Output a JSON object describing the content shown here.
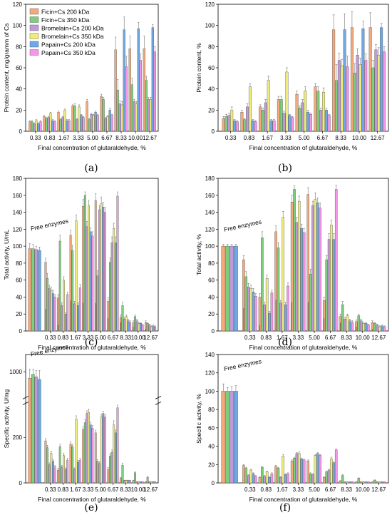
{
  "colors": {
    "ficin200": "#f4a97a",
    "ficin350": "#7ccf7c",
    "brom200": "#c09ad8",
    "brom350": "#f0ec7c",
    "pap200": "#6ea9e6",
    "pap350": "#f596ea"
  },
  "legend": [
    "Ficin+Cs 200 kDa",
    "Ficin+Cs 350 kDa",
    "Bromelain+Cs 200 kDa",
    "Bromelain+Cs 350 kDa",
    "Papain+Cs 200 kDa",
    "Papain+Cs 350 kDa"
  ],
  "chart_data": [
    {
      "panel": "(a)",
      "type": "bar",
      "xlabel": "Final concentration of glutaraldehyde, %",
      "ylabel": "Protein content, mg/gramm of Cs",
      "ylim": [
        0,
        120
      ],
      "yticks": [
        0,
        20,
        40,
        60,
        80,
        100,
        120
      ],
      "categories": [
        "0.33",
        "0.83",
        "1.67",
        "3.33",
        "5.00",
        "6.67",
        "8.33",
        "10.00",
        "12.67"
      ],
      "free_enzymes": false,
      "legend_position": "top-left",
      "series": [
        {
          "name": "Ficin+Cs 200 kDa",
          "values": [
            9,
            14,
            18,
            24,
            28,
            33,
            77,
            78,
            78
          ],
          "err": [
            1,
            1,
            1,
            1,
            2,
            2,
            12,
            12,
            12
          ]
        },
        {
          "name": "Ficin+Cs 350 kDa",
          "values": [
            9,
            12,
            11,
            24,
            11,
            30,
            39,
            44,
            48
          ],
          "err": [
            1,
            1,
            1,
            2,
            1,
            2,
            10,
            6,
            4
          ]
        },
        {
          "name": "Bromelain+Cs 200 kDa",
          "values": [
            7,
            13,
            13,
            11,
            16,
            12,
            26,
            28,
            30
          ],
          "err": [
            1,
            1,
            1,
            1,
            1,
            1,
            3,
            2,
            2
          ]
        },
        {
          "name": "Bromelain+Cs 350 kDa",
          "values": [
            10,
            17,
            20,
            23,
            15,
            14,
            25,
            26,
            30
          ],
          "err": [
            1,
            1,
            1,
            2,
            1,
            1,
            3,
            2,
            2
          ]
        },
        {
          "name": "Papain+Cs 200 kDa",
          "values": [
            7,
            10,
            10,
            15,
            18,
            20,
            96,
            97,
            98
          ],
          "err": [
            1,
            1,
            1,
            1,
            1,
            2,
            12,
            6,
            3
          ]
        },
        {
          "name": "Papain+Cs 350 kDa",
          "values": [
            9,
            9,
            10,
            13,
            15,
            15,
            61,
            67,
            75
          ],
          "err": [
            1,
            1,
            1,
            1,
            1,
            1,
            10,
            6,
            5
          ]
        }
      ]
    },
    {
      "panel": "(b)",
      "type": "bar",
      "xlabel": "Final concentration of glutaraldehyde, %",
      "ylabel": "Protein content, %",
      "ylim": [
        0,
        120
      ],
      "yticks": [
        0,
        20,
        40,
        60,
        80,
        100,
        120
      ],
      "categories": [
        "0.33",
        "0.83",
        "1.67",
        "3.33",
        "5.00",
        "6.67",
        "8.33",
        "10.00",
        "12.67"
      ],
      "free_enzymes": false,
      "series": [
        {
          "name": "Ficin+Cs 200 kDa",
          "values": [
            12,
            18,
            23,
            30,
            35,
            42,
            96,
            98,
            98
          ],
          "err": [
            2,
            2,
            2,
            3,
            3,
            3,
            14,
            15,
            14
          ]
        },
        {
          "name": "Ficin+Cs 350 kDa",
          "values": [
            14,
            11,
            20,
            30,
            22,
            38,
            48,
            55,
            60
          ],
          "err": [
            2,
            1,
            2,
            3,
            2,
            4,
            15,
            9,
            7
          ]
        },
        {
          "name": "Bromelain+Cs 200 kDa",
          "values": [
            15,
            23,
            27,
            17,
            27,
            20,
            67,
            72,
            77
          ],
          "err": [
            2,
            3,
            3,
            2,
            3,
            2,
            7,
            6,
            5
          ]
        },
        {
          "name": "Bromelain+Cs 350 kDa",
          "values": [
            20,
            42,
            48,
            56,
            38,
            37,
            62,
            63,
            72
          ],
          "err": [
            3,
            3,
            4,
            4,
            4,
            4,
            6,
            6,
            7
          ]
        },
        {
          "name": "Papain+Cs 200 kDa",
          "values": [
            10,
            10,
            10,
            15,
            18,
            20,
            96,
            97,
            98
          ],
          "err": [
            1,
            1,
            1,
            1,
            2,
            2,
            15,
            7,
            4
          ]
        },
        {
          "name": "Papain+Cs 350 kDa",
          "values": [
            9,
            9,
            10,
            13,
            16,
            15,
            61,
            67,
            75
          ],
          "err": [
            1,
            1,
            1,
            1,
            1,
            1,
            10,
            6,
            5
          ]
        }
      ]
    },
    {
      "panel": "(c)",
      "type": "bar",
      "xlabel": "Final concentration of glutaraldehyde, %",
      "ylabel": "Total activity, U/mL",
      "ylim": [
        0,
        180
      ],
      "yticks": [
        0,
        20,
        40,
        60,
        80,
        100,
        120,
        140,
        160,
        180
      ],
      "categories": [
        "0.33",
        "0.83",
        "1.67",
        "3.33",
        "5.00",
        "6.67",
        "8.33",
        "10.00",
        "12.67"
      ],
      "free_enzymes": true,
      "annotation": "Free enzymes",
      "free_values": [
        97,
        97,
        96,
        95
      ],
      "free_err": [
        6,
        5,
        4,
        4
      ],
      "series": [
        {
          "name": "Ficin+Cs 200 kDa",
          "values": [
            81,
            39,
            113,
            147,
            154,
            35,
            16,
            10,
            10
          ],
          "err": [
            5,
            4,
            6,
            8,
            8,
            4,
            3,
            2,
            2
          ]
        },
        {
          "name": "Ficin+Cs 350 kDa",
          "values": [
            62,
            106,
            95,
            160,
            65,
            81,
            30,
            17,
            9
          ],
          "err": [
            6,
            7,
            6,
            4,
            6,
            5,
            4,
            2,
            1
          ]
        },
        {
          "name": "Bromelain+Cs 200 kDa",
          "values": [
            50,
            30,
            32,
            123,
            143,
            104,
            14,
            12,
            7
          ],
          "err": [
            4,
            3,
            3,
            6,
            5,
            7,
            2,
            2,
            1
          ]
        },
        {
          "name": "Bromelain+Cs 350 kDa",
          "values": [
            48,
            60,
            130,
            148,
            150,
            121,
            17,
            9,
            5
          ],
          "err": [
            4,
            4,
            7,
            6,
            8,
            6,
            2,
            1,
            1
          ]
        },
        {
          "name": "Papain+Cs 200 kDa",
          "values": [
            44,
            20,
            30,
            117,
            146,
            104,
            12,
            9,
            6
          ],
          "err": [
            4,
            2,
            3,
            5,
            6,
            7,
            2,
            1,
            1
          ]
        },
        {
          "name": "Papain+Cs 350 kDa",
          "values": [
            40,
            43,
            51,
            112,
            140,
            159,
            10,
            7,
            5
          ],
          "err": [
            3,
            3,
            4,
            5,
            6,
            5,
            2,
            1,
            1
          ]
        }
      ],
      "inner_values": [
        26,
        7,
        36,
        33,
        33,
        15,
        10,
        5,
        2
      ]
    },
    {
      "panel": "(d)",
      "type": "bar",
      "xlabel": "Final concentration of glutaraldehyde, %",
      "ylabel": "Total activity, %",
      "ylim": [
        0,
        180
      ],
      "yticks": [
        0,
        20,
        40,
        60,
        80,
        100,
        120,
        140,
        160,
        180
      ],
      "categories": [
        "0.33",
        "0.83",
        "1.67",
        "3.33",
        "5.00",
        "6.67",
        "8.33",
        "10.00",
        "12.67"
      ],
      "free_enzymes": true,
      "annotation": "Free enzymes",
      "free_values": [
        100,
        100,
        100,
        100
      ],
      "free_err": [
        2,
        2,
        2,
        2
      ],
      "series": [
        {
          "name": "Ficin+Cs 200 kDa",
          "values": [
            84,
            40,
            117,
            152,
            161,
            36,
            17,
            11,
            10
          ],
          "err": [
            5,
            4,
            7,
            8,
            8,
            4,
            3,
            2,
            2
          ]
        },
        {
          "name": "Ficin+Cs 350 kDa",
          "values": [
            64,
            110,
            98,
            167,
            67,
            84,
            31,
            18,
            9
          ],
          "err": [
            6,
            7,
            6,
            4,
            6,
            5,
            4,
            2,
            1
          ]
        },
        {
          "name": "Bromelain+Cs 200 kDa",
          "values": [
            52,
            31,
            33,
            128,
            148,
            108,
            14,
            12,
            7
          ],
          "err": [
            4,
            3,
            3,
            6,
            5,
            7,
            2,
            2,
            1
          ]
        },
        {
          "name": "Bromelain+Cs 350 kDa",
          "values": [
            50,
            62,
            134,
            153,
            155,
            125,
            18,
            9,
            5
          ],
          "err": [
            4,
            4,
            7,
            6,
            8,
            6,
            2,
            1,
            1
          ]
        },
        {
          "name": "Papain+Cs 200 kDa",
          "values": [
            46,
            21,
            31,
            121,
            151,
            108,
            12,
            9,
            6
          ],
          "err": [
            4,
            2,
            3,
            5,
            6,
            7,
            2,
            1,
            1
          ]
        },
        {
          "name": "Papain+Cs 350 kDa",
          "values": [
            41,
            45,
            53,
            116,
            145,
            167,
            10,
            7,
            5
          ],
          "err": [
            3,
            3,
            4,
            5,
            6,
            5,
            2,
            1,
            1
          ]
        }
      ],
      "inner_values": [
        27,
        7,
        37,
        34,
        34,
        15,
        10,
        5,
        2
      ]
    },
    {
      "panel": "(e)",
      "type": "bar",
      "xlabel": "Final concentration of glutaraldehyde, %",
      "ylabel": "Specific activity, U/mg",
      "axis_break": true,
      "yticks": [
        0,
        200,
        1000
      ],
      "categories": [
        "0.33",
        "0.83",
        "1.67",
        "3.33",
        "5.00",
        "6.67",
        "8.33",
        "10.00",
        "12.67"
      ],
      "free_enzymes": true,
      "annotation": "Free enzymes",
      "free_values": [
        950,
        980,
        960,
        940
      ],
      "free_err": [
        70,
        40,
        50,
        70
      ],
      "series": [
        {
          "name": "Ficin+Cs 200 kDa",
          "values": [
            185,
            56,
            170,
            235,
            220,
            60,
            20,
            10,
            5
          ],
          "err": [
            10,
            8,
            12,
            12,
            12,
            8,
            4,
            2,
            1
          ]
        },
        {
          "name": "Ficin+Cs 350 kDa",
          "values": [
            155,
            160,
            160,
            265,
            95,
            118,
            78,
            45,
            25
          ],
          "err": [
            10,
            10,
            10,
            12,
            8,
            10,
            8,
            4,
            3
          ]
        },
        {
          "name": "Bromelain+Cs 200 kDa",
          "values": [
            80,
            70,
            60,
            305,
            85,
            135,
            10,
            5,
            5
          ],
          "err": [
            8,
            6,
            6,
            12,
            8,
            10,
            2,
            1,
            1
          ]
        },
        {
          "name": "Bromelain+Cs 350 kDa",
          "values": [
            130,
            120,
            280,
            310,
            290,
            255,
            10,
            5,
            5
          ],
          "err": [
            10,
            10,
            15,
            15,
            12,
            18,
            2,
            1,
            1
          ]
        },
        {
          "name": "Papain+Cs 200 kDa",
          "values": [
            95,
            60,
            90,
            255,
            305,
            220,
            10,
            5,
            5
          ],
          "err": [
            8,
            6,
            8,
            12,
            10,
            12,
            2,
            1,
            1
          ]
        },
        {
          "name": "Papain+Cs 350 kDa",
          "values": [
            70,
            100,
            100,
            240,
            290,
            330,
            10,
            5,
            5
          ],
          "err": [
            6,
            8,
            8,
            12,
            10,
            12,
            2,
            1,
            1
          ]
        }
      ]
    },
    {
      "panel": "(f)",
      "type": "bar",
      "xlabel": "Final concentration of glutaraldehyde, %",
      "ylabel": "Specific activity, %",
      "ylim": [
        0,
        140
      ],
      "yticks": [
        0,
        20,
        40,
        60,
        80,
        100,
        120,
        140
      ],
      "categories": [
        "0.33",
        "0.83",
        "1.67",
        "3.33",
        "5.00",
        "6.67",
        "8.33",
        "10.00",
        "12.67"
      ],
      "free_enzymes": true,
      "annotation": "Free enzymes",
      "free_values": [
        100,
        100,
        100,
        100
      ],
      "free_err": [
        8,
        4,
        5,
        6
      ],
      "series": [
        {
          "name": "Ficin+Cs 200 kDa",
          "values": [
            19,
            6,
            18,
            24,
            24,
            6,
            2,
            1,
            1
          ],
          "err": [
            1,
            1,
            1,
            1,
            1,
            1,
            0.5,
            0.3,
            0.3
          ]
        },
        {
          "name": "Ficin+Cs 350 kDa",
          "values": [
            16,
            17,
            16,
            27,
            10,
            12,
            8,
            5,
            3
          ],
          "err": [
            1,
            1,
            1,
            1,
            1,
            1,
            1,
            0.5,
            0.3
          ]
        },
        {
          "name": "Bromelain+Cs 200 kDa",
          "values": [
            8,
            7,
            6,
            32,
            9,
            14,
            1,
            1,
            1
          ],
          "err": [
            1,
            1,
            1,
            1,
            1,
            1,
            0.3,
            0.3,
            0.3
          ]
        },
        {
          "name": "Bromelain+Cs 350 kDa",
          "values": [
            14,
            12,
            29,
            32,
            30,
            26,
            1,
            1,
            1
          ],
          "err": [
            1,
            1,
            2,
            2,
            1,
            2,
            0.3,
            0.3,
            0.3
          ]
        },
        {
          "name": "Papain+Cs 200 kDa",
          "values": [
            10,
            6,
            9,
            26,
            32,
            22,
            1,
            1,
            1
          ],
          "err": [
            1,
            1,
            1,
            1,
            1,
            1,
            0.3,
            0.3,
            0.3
          ]
        },
        {
          "name": "Papain+Cs 350 kDa",
          "values": [
            7,
            10,
            10,
            25,
            30,
            36,
            1,
            1,
            1
          ],
          "err": [
            1,
            1,
            1,
            1,
            1,
            1,
            0.3,
            0.3,
            0.3
          ]
        }
      ]
    }
  ]
}
